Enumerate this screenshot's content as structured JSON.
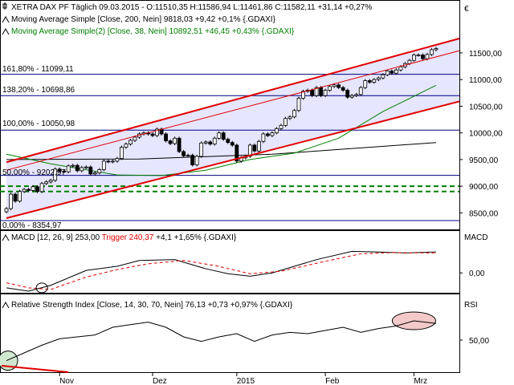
{
  "currency_symbol": "€",
  "price_panel": {
    "legend": [
      {
        "text": "XETRA DAX PF Täglich  09.03.2015 - O:11510,35 H:11586,94 L:11461,86 C:11582,11 +31,14 +0,27%",
        "color": "#000000"
      },
      {
        "text": "Moving Average Simple [Close, 200, Nein] 9818,03 +9,42 +0,1% {.GDAXI}",
        "color": "#000000"
      },
      {
        "text": "Moving Average Simple(2) [Close, 38, Nein] 10892,51 +46,45 +0,43% {.GDAXI}",
        "color": "#008000"
      }
    ],
    "fib_labels": [
      "161,80% - 11099,11",
      "138,20% - 10698,86",
      "100,00% - 10050,98",
      "50,00% - 9202,97",
      "0,00% - 8354,97"
    ],
    "y_ticks": [
      "11500,00",
      "11000,00",
      "10500,00",
      "10000,00",
      "9500,00",
      "9000,00",
      "8500,00"
    ]
  },
  "macd_panel": {
    "legend_prefix": "MACD [12, 26, 9] 253,00",
    "legend_trigger": "Trigger 240,37",
    "legend_suffix": "+4,1 +1,65% {.GDAXI}",
    "axis_title": "MACD",
    "y_ticks": [
      "0,00"
    ]
  },
  "rsi_panel": {
    "legend": "Relative Strength Index [Close, 14, 30, 70, Nein] 76,13 +0,73 +0,97% {.GDAXI}",
    "axis_title": "RSI",
    "y_ticks": [
      "50,00"
    ]
  },
  "x_ticks": [
    "Nov",
    "Dez",
    "2015",
    "Feb",
    "Mrz"
  ],
  "colors": {
    "channel": "#e00000",
    "fib": "#000080",
    "ma200": "#000000",
    "ma38": "#008000",
    "macd": "#000000",
    "trigger": "#e00000",
    "channel_fill": "#e6e6ff"
  },
  "chart_data": [
    {
      "type": "candlestick",
      "title": "XETRA DAX PF Täglich",
      "ylim": [
        8250,
        11800
      ],
      "dates": [
        "2014-10-16",
        "2014-10-17",
        "2014-10-20",
        "2014-10-21",
        "2014-10-22",
        "2014-10-23",
        "2014-10-24",
        "2014-10-27",
        "2014-10-28",
        "2014-10-29",
        "2014-10-30",
        "2014-10-31",
        "2014-11-03",
        "2014-11-04",
        "2014-11-05",
        "2014-11-06",
        "2014-11-07",
        "2014-11-10",
        "2014-11-11",
        "2014-11-12",
        "2014-11-13",
        "2014-11-14",
        "2014-11-17",
        "2014-11-18",
        "2014-11-19",
        "2014-11-20",
        "2014-11-21",
        "2014-11-24",
        "2014-11-25",
        "2014-11-26",
        "2014-11-27",
        "2014-11-28",
        "2014-12-01",
        "2014-12-02",
        "2014-12-03",
        "2014-12-04",
        "2014-12-05",
        "2014-12-08",
        "2014-12-09",
        "2014-12-10",
        "2014-12-11",
        "2014-12-12",
        "2014-12-15",
        "2014-12-16",
        "2014-12-17",
        "2014-12-18",
        "2014-12-19",
        "2014-12-22",
        "2014-12-23",
        "2014-12-29",
        "2014-12-30",
        "2015-01-02",
        "2015-01-05",
        "2015-01-06",
        "2015-01-07",
        "2015-01-08",
        "2015-01-09",
        "2015-01-12",
        "2015-01-13",
        "2015-01-14",
        "2015-01-15",
        "2015-01-16",
        "2015-01-19",
        "2015-01-20",
        "2015-01-21",
        "2015-01-22",
        "2015-01-23",
        "2015-01-26",
        "2015-01-27",
        "2015-01-28",
        "2015-01-29",
        "2015-01-30",
        "2015-02-02",
        "2015-02-03",
        "2015-02-04",
        "2015-02-05",
        "2015-02-06",
        "2015-02-09",
        "2015-02-10",
        "2015-02-11",
        "2015-02-12",
        "2015-02-13",
        "2015-02-16",
        "2015-02-17",
        "2015-02-18",
        "2015-02-19",
        "2015-02-20",
        "2015-02-23",
        "2015-02-24",
        "2015-02-25",
        "2015-02-26",
        "2015-02-27",
        "2015-03-02",
        "2015-03-03",
        "2015-03-04",
        "2015-03-05",
        "2015-03-06",
        "2015-03-09"
      ],
      "close": [
        8580,
        8850,
        8720,
        8900,
        8940,
        8920,
        8990,
        8900,
        9050,
        9080,
        9110,
        9320,
        9280,
        9270,
        9380,
        9390,
        9290,
        9350,
        9360,
        9230,
        9250,
        9310,
        9470,
        9460,
        9470,
        9520,
        9730,
        9790,
        9860,
        9920,
        9980,
        10000,
        9980,
        9950,
        10070,
        9980,
        9850,
        9800,
        9900,
        9650,
        9570,
        9580,
        9400,
        9560,
        9810,
        9830,
        9790,
        9900,
        10000,
        9880,
        9820,
        9770,
        9470,
        9530,
        9560,
        9770,
        9660,
        9840,
        9980,
        9950,
        10000,
        10080,
        10140,
        10270,
        10300,
        10420,
        10650,
        10780,
        10800,
        10700,
        10850,
        10700,
        10800,
        10870,
        10900,
        10850,
        10800,
        10670,
        10700,
        10720,
        10850,
        10980,
        10950,
        11000,
        11030,
        11090,
        11160,
        11120,
        11180,
        11240,
        11300,
        11360,
        11460,
        11460,
        11390,
        11470,
        11560,
        11582
      ],
      "series": [
        {
          "name": "Moving Average Simple [Close, 200, Nein]",
          "points": [
            [
              0,
              9500
            ],
            [
              30,
              9510
            ],
            [
              60,
              9600
            ],
            [
              97,
              9818
            ]
          ]
        },
        {
          "name": "Moving Average Simple(2) [Close, 38, Nein]",
          "points": [
            [
              0,
              9600
            ],
            [
              10,
              9420
            ],
            [
              25,
              9210
            ],
            [
              35,
              9200
            ],
            [
              45,
              9300
            ],
            [
              55,
              9500
            ],
            [
              65,
              9620
            ],
            [
              75,
              9900
            ],
            [
              85,
              10400
            ],
            [
              97,
              10892
            ]
          ]
        }
      ],
      "fibonacci": [
        {
          "label": "161,80%",
          "value": 11099.11
        },
        {
          "label": "138,20%",
          "value": 10698.86
        },
        {
          "label": "100,00%",
          "value": 10050.98
        },
        {
          "label": "50,00%",
          "value": 9202.97
        },
        {
          "label": "0,00%",
          "value": 8354.97
        }
      ],
      "channel_upper": [
        [
          0,
          9450
        ],
        [
          97,
          11700
        ]
      ],
      "channel_lower": [
        [
          0,
          8400
        ],
        [
          97,
          10560
        ]
      ],
      "channel_mid": [
        [
          0,
          9300
        ],
        [
          97,
          11520
        ]
      ],
      "support_lines": [
        9000,
        8900
      ]
    },
    {
      "type": "line",
      "title": "MACD [12, 26, 9]",
      "ylim": [
        -230,
        360
      ],
      "series": [
        {
          "name": "MACD",
          "points": [
            [
              0,
              -180
            ],
            [
              5,
              -220
            ],
            [
              10,
              -150
            ],
            [
              18,
              30
            ],
            [
              25,
              80
            ],
            [
              30,
              150
            ],
            [
              38,
              160
            ],
            [
              45,
              50
            ],
            [
              50,
              -10
            ],
            [
              55,
              -40
            ],
            [
              60,
              0
            ],
            [
              70,
              160
            ],
            [
              78,
              260
            ],
            [
              85,
              250
            ],
            [
              90,
              240
            ],
            [
              97,
              253
            ]
          ]
        },
        {
          "name": "Trigger",
          "points": [
            [
              0,
              -120
            ],
            [
              5,
              -180
            ],
            [
              10,
              -200
            ],
            [
              18,
              -50
            ],
            [
              25,
              40
            ],
            [
              32,
              110
            ],
            [
              40,
              150
            ],
            [
              47,
              90
            ],
            [
              55,
              -10
            ],
            [
              62,
              20
            ],
            [
              72,
              140
            ],
            [
              80,
              230
            ],
            [
              87,
              245
            ],
            [
              97,
              240
            ]
          ]
        }
      ]
    },
    {
      "type": "line",
      "title": "Relative Strength Index [Close, 14, 30, 70, Nein]",
      "ylim": [
        5,
        95
      ],
      "x": [
        0,
        4,
        8,
        12,
        16,
        20,
        24,
        28,
        32,
        36,
        40,
        44,
        48,
        52,
        56,
        60,
        64,
        68,
        72,
        76,
        80,
        84,
        88,
        92,
        97
      ],
      "values": [
        18,
        30,
        42,
        52,
        55,
        58,
        70,
        74,
        78,
        70,
        55,
        48,
        55,
        60,
        48,
        58,
        62,
        60,
        65,
        70,
        62,
        68,
        72,
        80,
        76
      ]
    }
  ]
}
